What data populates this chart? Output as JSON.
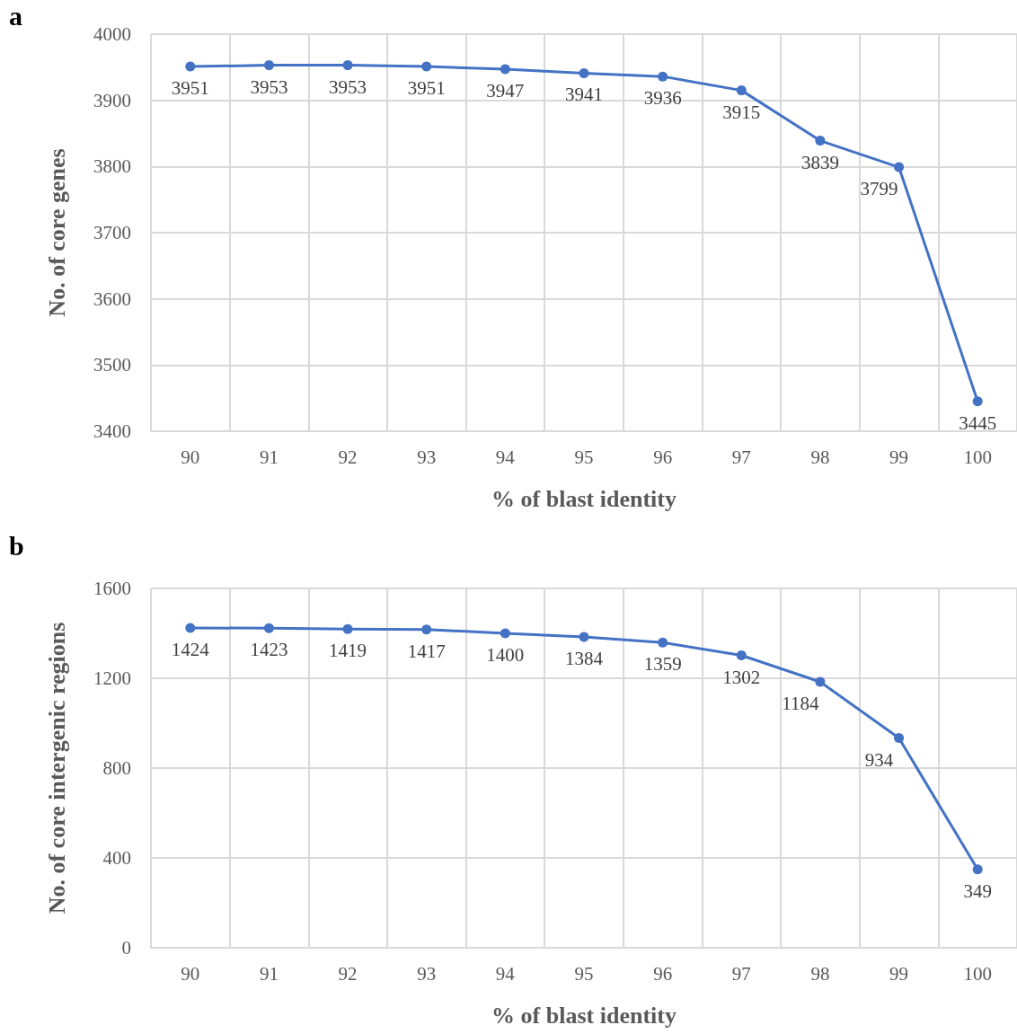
{
  "chart_data": [
    {
      "type": "line",
      "annotations": [
        "a"
      ],
      "xlabel": "% of blast identity",
      "ylabel": "No. of core genes",
      "categories": [
        "90",
        "91",
        "92",
        "93",
        "94",
        "95",
        "96",
        "97",
        "98",
        "99",
        "100"
      ],
      "series": [
        {
          "color": "#4472c4",
          "values": [
            3951,
            3953,
            3953,
            3951,
            3947,
            3941,
            3936,
            3915,
            3839,
            3799,
            3445
          ]
        }
      ],
      "ylim": [
        3400,
        4000
      ],
      "yticks": [
        3400,
        3500,
        3600,
        3700,
        3800,
        3900,
        4000
      ],
      "grid": true,
      "marker": "circle",
      "line_style": "solid",
      "data_labels": true
    },
    {
      "type": "line",
      "annotations": [
        "b"
      ],
      "xlabel": "% of blast identity",
      "ylabel": "No. of core intergenic regions",
      "categories": [
        "90",
        "91",
        "92",
        "93",
        "94",
        "95",
        "96",
        "97",
        "98",
        "99",
        "100"
      ],
      "series": [
        {
          "color": "#4472c4",
          "values": [
            1424,
            1423,
            1419,
            1417,
            1400,
            1384,
            1359,
            1302,
            1184,
            934,
            349
          ]
        }
      ],
      "ylim": [
        0,
        1600
      ],
      "yticks": [
        0,
        400,
        800,
        1200,
        1600
      ],
      "grid": true,
      "marker": "circle",
      "line_style": "solid",
      "data_labels": true
    }
  ]
}
